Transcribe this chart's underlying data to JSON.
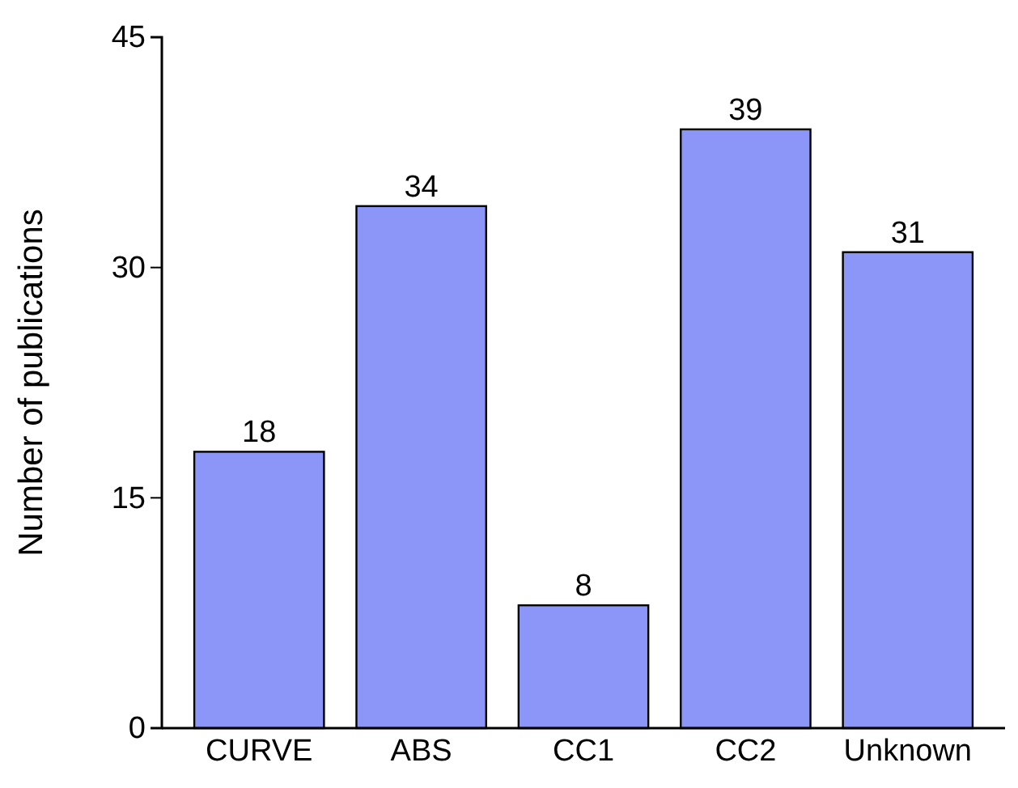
{
  "chart_data": {
    "type": "bar",
    "ylabel": "Number of publications",
    "categories": [
      "CURVE",
      "ABS",
      "CC1",
      "CC2",
      "Unknown"
    ],
    "values": [
      18,
      34,
      8,
      39,
      31
    ],
    "color": "#8c96f8",
    "ylim": [
      0,
      45
    ],
    "yticks": [
      0,
      15,
      30,
      45
    ],
    "data_labels": true
  }
}
